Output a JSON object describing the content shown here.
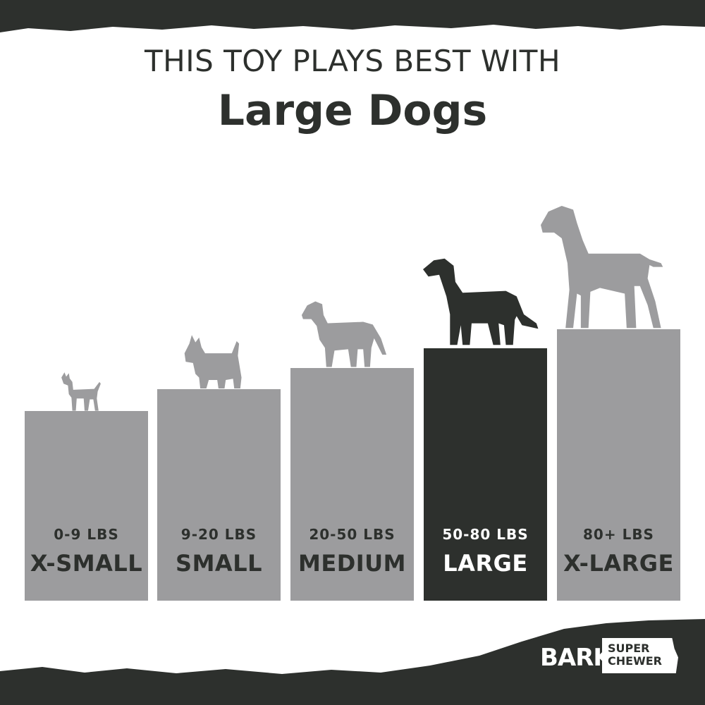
{
  "header": {
    "line1": "THIS TOY PLAYS BEST WITH",
    "line2": "Large Dogs"
  },
  "colors": {
    "dark": "#2d302d",
    "bar": "#9c9c9e",
    "background": "#ffffff"
  },
  "sizes": [
    {
      "weight": "0-9 LBS",
      "label": "X-SMALL",
      "active": false,
      "icon": "chihuahua-silhouette-icon"
    },
    {
      "weight": "9-20 LBS",
      "label": "SMALL",
      "active": false,
      "icon": "terrier-silhouette-icon"
    },
    {
      "weight": "20-50 LBS",
      "label": "MEDIUM",
      "active": false,
      "icon": "lab-silhouette-icon"
    },
    {
      "weight": "50-80 LBS",
      "label": "LARGE",
      "active": true,
      "icon": "retriever-silhouette-icon"
    },
    {
      "weight": "80+ LBS",
      "label": "X-LARGE",
      "active": false,
      "icon": "great-dane-silhouette-icon"
    }
  ],
  "logo": {
    "bark": "BARK",
    "super": "SUPER",
    "chewer": "CHEWER"
  }
}
